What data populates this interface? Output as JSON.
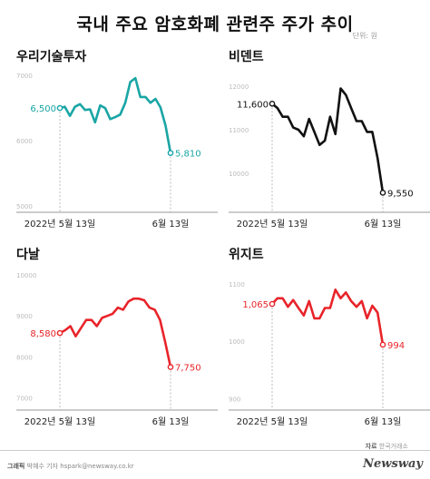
{
  "title": "국내 주요 암호화폐 관련주 주가 추이",
  "unit": "단위: 원",
  "footer": {
    "credit_label": "그래픽",
    "credit_text": "박혜수 기자 hspark@newsway.co.kr",
    "source_label": "자료",
    "source_text": "한국거래소",
    "logo": "Newsway"
  },
  "chart_data": [
    {
      "name": "우리기술투자",
      "type": "line",
      "color": "#1aa5a5",
      "ylim": [
        4900,
        7100
      ],
      "yticks": [
        5000,
        6000,
        7000
      ],
      "xticks": [
        "2022년 5월 13일",
        "6월 13일"
      ],
      "values": [
        6500,
        6520,
        6380,
        6520,
        6560,
        6470,
        6480,
        6280,
        6540,
        6500,
        6330,
        6360,
        6400,
        6580,
        6900,
        6960,
        6670,
        6670,
        6580,
        6640,
        6510,
        6230,
        5810
      ],
      "start_label": "6,500",
      "end_label": "5,810"
    },
    {
      "name": "비덴트",
      "type": "line",
      "color": "#111111",
      "ylim": [
        9100,
        12400
      ],
      "yticks": [
        9000,
        10000,
        11000,
        12000
      ],
      "xticks": [
        "2022년 5월 13일",
        "6월 13일"
      ],
      "values": [
        11600,
        11500,
        11300,
        11300,
        11050,
        11000,
        10850,
        11250,
        10950,
        10650,
        10750,
        11300,
        10900,
        11950,
        11800,
        11500,
        11200,
        11200,
        10950,
        10950,
        10350,
        9550
      ],
      "start_label": "11,600",
      "end_label": "9,550"
    },
    {
      "name": "다날",
      "type": "line",
      "color": "#e8242a",
      "ylim": [
        6700,
        10200
      ],
      "yticks": [
        7000,
        8000,
        9000,
        10000
      ],
      "xticks": [
        "2022년 5월 13일",
        "6월 13일"
      ],
      "values": [
        8580,
        8650,
        8750,
        8500,
        8700,
        8900,
        8900,
        8750,
        8950,
        9000,
        9050,
        9200,
        9150,
        9350,
        9420,
        9420,
        9380,
        9200,
        9150,
        8900,
        8350,
        7750
      ],
      "start_label": "8,580",
      "end_label": "7,750"
    },
    {
      "name": "위지트",
      "type": "line",
      "color": "#e8242a",
      "ylim": [
        880,
        1130
      ],
      "yticks": [
        900,
        1000,
        1100
      ],
      "xticks": [
        "2022년 5월 13일",
        "6월 13일"
      ],
      "values": [
        1065,
        1075,
        1075,
        1060,
        1072,
        1058,
        1045,
        1070,
        1040,
        1040,
        1058,
        1058,
        1090,
        1075,
        1085,
        1070,
        1060,
        1070,
        1040,
        1062,
        1050,
        994
      ],
      "start_label": "1,065",
      "end_label": "994"
    }
  ]
}
